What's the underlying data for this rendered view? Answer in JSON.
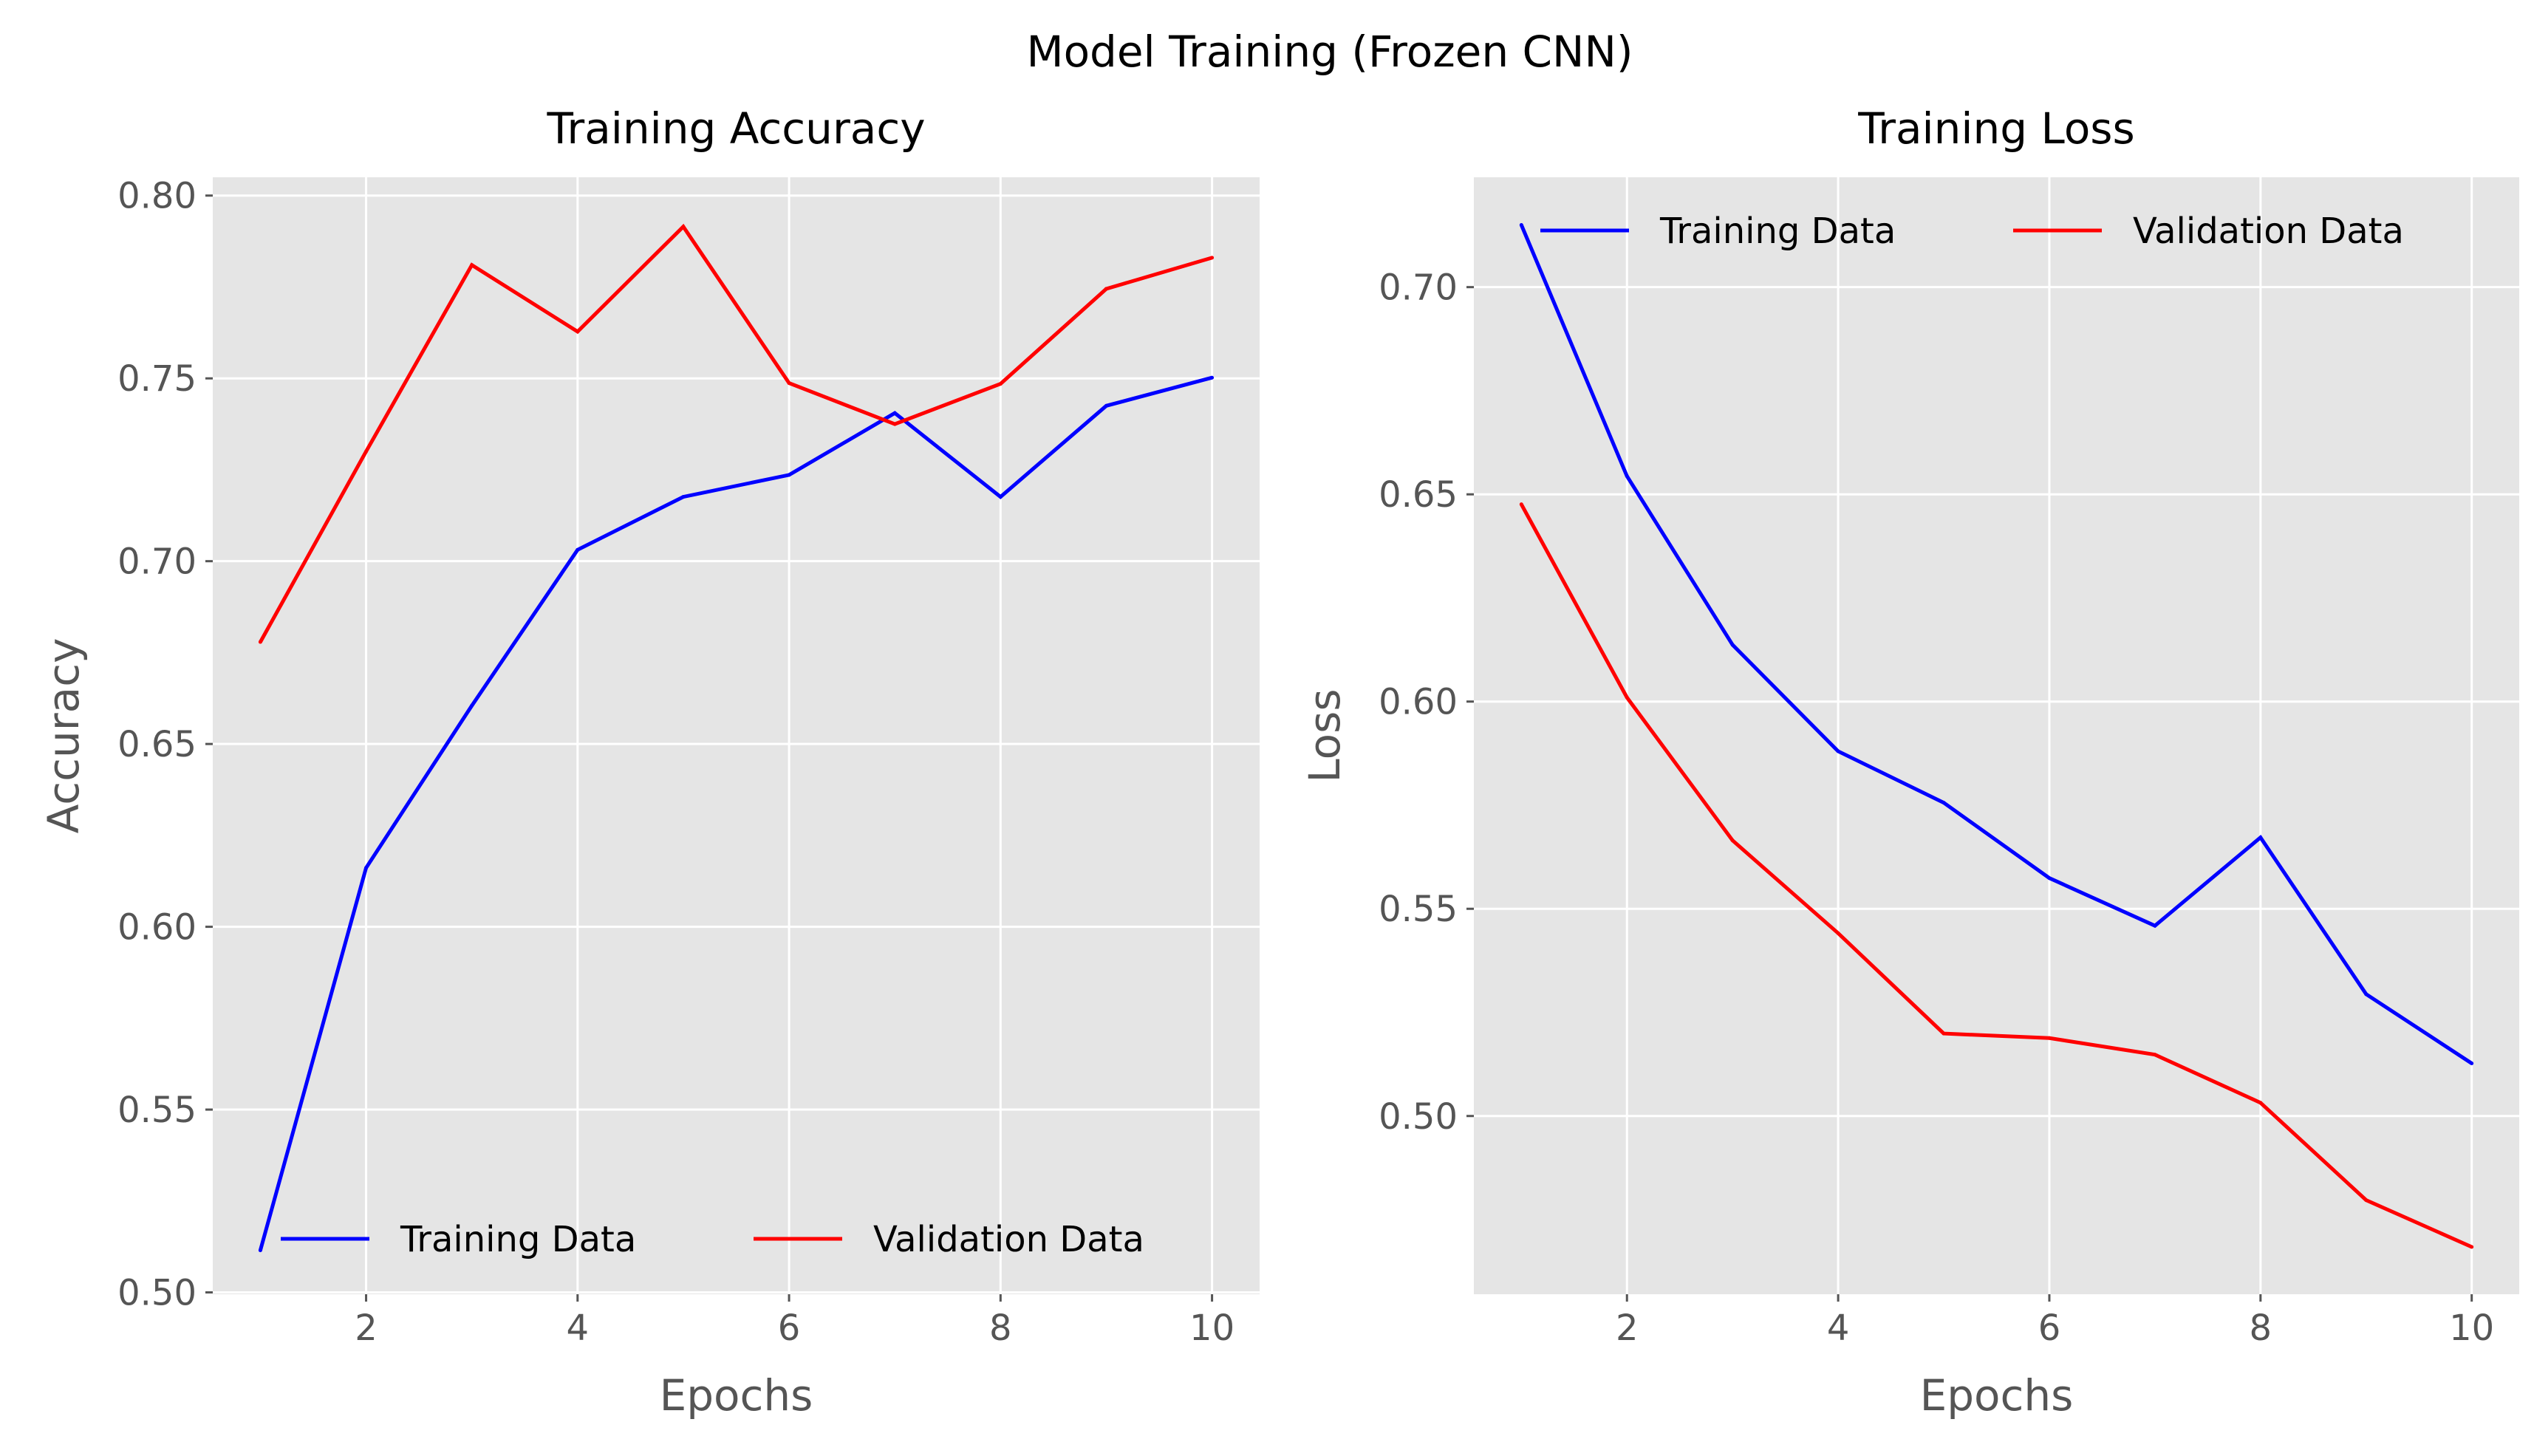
{
  "figure": {
    "suptitle": "Model Training (Frozen CNN)"
  },
  "colors": {
    "training": "#0000ff",
    "validation": "#ff0000",
    "axes_background": "#e5e5e5",
    "grid": "#ffffff",
    "tick_text": "#555555"
  },
  "chart_data": [
    {
      "type": "line",
      "title": "Training Accuracy",
      "xlabel": "Epochs",
      "ylabel": "Accuracy",
      "xlim": [
        0.55,
        10.45
      ],
      "ylim": [
        0.4995,
        0.805
      ],
      "xticks": [
        2,
        4,
        6,
        8,
        10
      ],
      "yticks": [
        0.5,
        0.55,
        0.6,
        0.65,
        0.7,
        0.75,
        0.8
      ],
      "ytick_labels": [
        "0.50",
        "0.55",
        "0.60",
        "0.65",
        "0.70",
        "0.75",
        "0.80"
      ],
      "grid": true,
      "legend": {
        "placement": "lower-right",
        "columns": 2
      },
      "x": [
        1,
        2,
        3,
        4,
        5,
        6,
        7,
        8,
        9,
        10
      ],
      "series": [
        {
          "name": "Training Data",
          "color": "#0000ff",
          "values": [
            0.5115,
            0.6161,
            0.6605,
            0.7031,
            0.7176,
            0.7236,
            0.7405,
            0.7176,
            0.7425,
            0.7502
          ]
        },
        {
          "name": "Validation Data",
          "color": "#ff0000",
          "values": [
            0.6779,
            0.73,
            0.781,
            0.7628,
            0.7915,
            0.7487,
            0.7375,
            0.7485,
            0.7745,
            0.783
          ]
        }
      ]
    },
    {
      "type": "line",
      "title": "Training Loss",
      "xlabel": "Epochs",
      "ylabel": "Loss",
      "xlim": [
        0.55,
        10.45
      ],
      "ylim": [
        0.457,
        0.7265
      ],
      "xticks": [
        2,
        4,
        6,
        8,
        10
      ],
      "yticks": [
        0.5,
        0.55,
        0.6,
        0.65,
        0.7
      ],
      "ytick_labels": [
        "0.50",
        "0.55",
        "0.60",
        "0.65",
        "0.70"
      ],
      "grid": true,
      "legend": {
        "placement": "upper-right",
        "columns": 2
      },
      "x": [
        1,
        2,
        3,
        4,
        5,
        6,
        7,
        8,
        9,
        10
      ],
      "series": [
        {
          "name": "Training Data",
          "color": "#0000ff",
          "values": [
            0.715,
            0.6544,
            0.6137,
            0.588,
            0.5756,
            0.5574,
            0.5459,
            0.5672,
            0.5294,
            0.5127
          ]
        },
        {
          "name": "Validation Data",
          "color": "#ff0000",
          "values": [
            0.6476,
            0.601,
            0.5665,
            0.5441,
            0.5199,
            0.5188,
            0.5148,
            0.5032,
            0.4797,
            0.4684
          ]
        }
      ]
    }
  ]
}
